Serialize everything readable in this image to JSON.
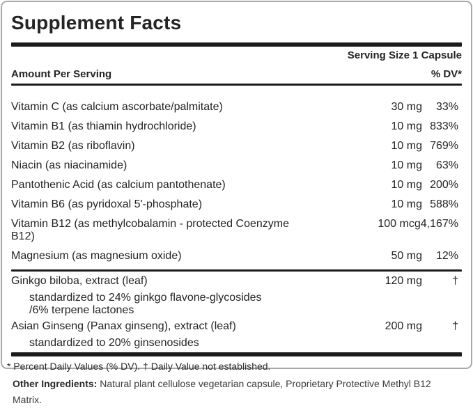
{
  "panel": {
    "title": "Supplement Facts",
    "serving_size": "Serving Size 1 Capsule",
    "header": {
      "amount_col": "Amount Per Serving",
      "dv_col": "% DV*"
    },
    "rows": [
      {
        "label": "Vitamin C (as calcium ascorbate/palmitate)",
        "amount": "30 mg",
        "dv": "33%"
      },
      {
        "label": "Vitamin B1 (as thiamin hydrochloride)",
        "amount": "10 mg",
        "dv": "833%"
      },
      {
        "label": "Vitamin B2 (as riboflavin)",
        "amount": "10 mg",
        "dv": "769%"
      },
      {
        "label": "Niacin (as niacinamide)",
        "amount": "10 mg",
        "dv": "63%"
      },
      {
        "label": "Pantothenic Acid (as calcium pantothenate)",
        "amount": "10 mg",
        "dv": "200%"
      },
      {
        "label": "Vitamin B6 (as pyridoxal 5'-phosphate)",
        "amount": "10 mg",
        "dv": "588%"
      },
      {
        "label": "Vitamin B12 (as methylcobalamin - protected Coenzyme B12)",
        "amount": "100 mcg",
        "dv": "4,167%"
      },
      {
        "label": "Magnesium (as magnesium oxide)",
        "amount": "50 mg",
        "dv": "12%"
      }
    ],
    "herbs": [
      {
        "label": "Ginkgo biloba, extract (leaf)",
        "amount": "120 mg",
        "dv": "†",
        "subs": [
          "standardized to 24% ginkgo flavone-glycosides",
          "/6% terpene lactones"
        ]
      },
      {
        "label": "Asian Ginseng (Panax ginseng), extract (leaf)",
        "amount": "200 mg",
        "dv": "†",
        "subs": [
          "standardized to 20% ginsenosides"
        ]
      }
    ],
    "footnote": "* Percent Daily Values (% DV). † Daily Value not established."
  },
  "other_ingredients": {
    "label": "Other Ingredients:",
    "text": " Natural plant cellulose vegetarian capsule, Proprietary Protective Methyl B12 Matrix."
  },
  "colors": {
    "rule": "#1b1b1b",
    "border": "#a9a9a9",
    "text": "#242424"
  }
}
